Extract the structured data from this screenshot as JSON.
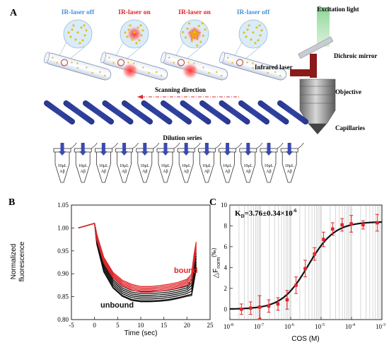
{
  "panelA": {
    "letter": "A",
    "states": [
      {
        "label": "IR-laser off",
        "color": "#4a90d9"
      },
      {
        "label": "IR-laser on",
        "color": "#e0262b"
      },
      {
        "label": "IR-laser on",
        "color": "#e0262b"
      },
      {
        "label": "IR-laser off",
        "color": "#4a90d9"
      }
    ],
    "excitation_label": "Excitation light",
    "dichroic_label": "Dichroic mirror",
    "infrared_label": "Infrared laser",
    "objective_label": "Objective",
    "capillaries_label": "Capillaries",
    "scanning_label": "Scanning direction",
    "dilution_label": "Dilution series",
    "tube_text_1": "10μL",
    "tube_text_2": "Aβ",
    "tube_count": 12,
    "capillary_count": 13
  },
  "panelB": {
    "letter": "B",
    "ylabel_1": "Normalized",
    "ylabel_2": "fluorescence",
    "xlabel": "Time (sec)",
    "bound_label": "bound",
    "unbound_label": "unbound",
    "yticks": [
      "1.05",
      "1.00",
      "0.95",
      "0.90",
      "0.85",
      "0.80"
    ],
    "xticks": [
      "-5",
      "0",
      "5",
      "10",
      "15",
      "20",
      "25"
    ],
    "colors": {
      "bound": "#e0262b",
      "unbound": "#111111"
    }
  },
  "panelC": {
    "letter": "C",
    "kd_label": "K",
    "kd_sub": "D",
    "kd_value": "=3.76±0.34×10",
    "kd_exp": "-6",
    "ylabel_main": "△F",
    "ylabel_sub": "norm",
    "ylabel_unit": "(‰)",
    "xlabel": "COS (M)",
    "yticks": [
      "0",
      "2",
      "4",
      "6",
      "8",
      "10"
    ],
    "xtick_bases": [
      "10",
      "10",
      "10",
      "10",
      "10",
      "10"
    ],
    "xtick_exps": [
      "-8",
      "-7",
      "-6",
      "-5",
      "-4",
      "-3"
    ]
  },
  "chart_data": [
    {
      "type": "line",
      "xlabel": "Time (sec)",
      "ylabel": "Normalized fluorescence",
      "xlim": [
        -5,
        25
      ],
      "ylim": [
        0.8,
        1.05
      ],
      "series": [
        {
          "name": "bound",
          "x": [
            -3.5,
            0,
            0.5,
            2,
            4,
            6,
            8,
            10,
            12,
            14,
            16,
            18,
            20,
            21,
            21.5,
            22
          ],
          "values": [
            1.0,
            1.01,
            0.98,
            0.93,
            0.897,
            0.88,
            0.871,
            0.866,
            0.866,
            0.868,
            0.871,
            0.875,
            0.882,
            0.89,
            0.93,
            0.96
          ]
        },
        {
          "name": "unbound",
          "x": [
            -3.5,
            0,
            0.5,
            2,
            4,
            6,
            8,
            10,
            12,
            14,
            16,
            18,
            20,
            21,
            21.5,
            22
          ],
          "values": [
            1.0,
            1.01,
            0.97,
            0.91,
            0.875,
            0.857,
            0.848,
            0.845,
            0.845,
            0.846,
            0.848,
            0.852,
            0.857,
            0.862,
            0.89,
            0.92
          ]
        }
      ]
    },
    {
      "type": "scatter",
      "xlabel": "COS (M)",
      "ylabel": "ΔFnorm (‰)",
      "xscale": "log",
      "xlim": [
        1e-08,
        0.001
      ],
      "ylim": [
        -1,
        10
      ],
      "series": [
        {
          "name": "data",
          "x": [
            2.4e-08,
            4.8e-08,
            9.5e-08,
            1.9e-07,
            3.8e-07,
            7.6e-07,
            1.5e-06,
            3e-06,
            6.1e-06,
            1.2e-05,
            2.4e-05,
            4.9e-05,
            9.8e-05,
            0.00024,
            0.0007
          ],
          "values": [
            0.0,
            0.1,
            0.2,
            0.3,
            0.5,
            0.9,
            2.3,
            3.9,
            5.3,
            6.7,
            7.7,
            8.1,
            8.2,
            8.1,
            8.3
          ],
          "errors": [
            0.5,
            0.6,
            1.1,
            0.6,
            0.6,
            0.9,
            0.8,
            0.8,
            0.6,
            0.7,
            0.6,
            0.6,
            0.8,
            0.4,
            0.8
          ]
        }
      ],
      "fit": {
        "kd": 3.76e-06,
        "top": 8.4,
        "bottom": 0
      }
    }
  ]
}
